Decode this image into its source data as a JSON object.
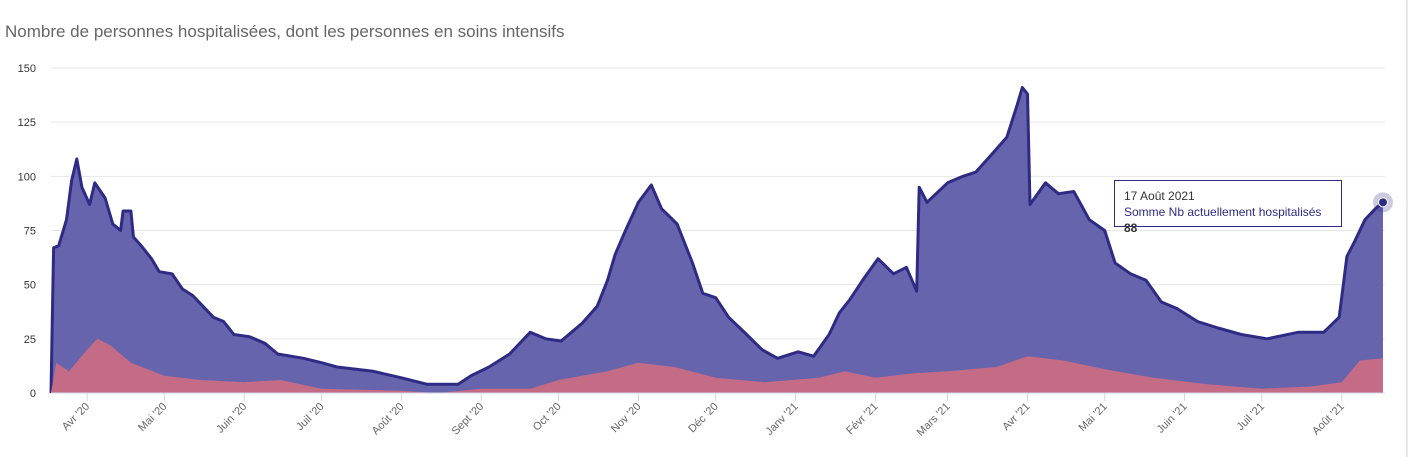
{
  "title": "Nombre de personnes hospitalisées, dont les personnes en soins intensifs",
  "tooltip": {
    "date": "17 Août 2021",
    "series_label": "Somme Nb actuellement hospitalisés",
    "value": "88"
  },
  "chart_data": {
    "type": "area",
    "title": "Nombre de personnes hospitalisées, dont les personnes en soins intensifs",
    "ylim": [
      0,
      150
    ],
    "yticks": [
      0,
      25,
      50,
      75,
      100,
      125,
      150
    ],
    "xlim": [
      "2020-03-18",
      "2021-08-17"
    ],
    "xticks": [
      {
        "date": "2020-04-01",
        "label": "Avr '20"
      },
      {
        "date": "2020-05-01",
        "label": "Mai '20"
      },
      {
        "date": "2020-06-01",
        "label": "Juin '20"
      },
      {
        "date": "2020-07-01",
        "label": "Juil '20"
      },
      {
        "date": "2020-08-01",
        "label": "Août '20"
      },
      {
        "date": "2020-09-01",
        "label": "Sept '20"
      },
      {
        "date": "2020-10-01",
        "label": "Oct '20"
      },
      {
        "date": "2020-11-01",
        "label": "Nov '20"
      },
      {
        "date": "2020-12-01",
        "label": "Déc '20"
      },
      {
        "date": "2021-01-01",
        "label": "Janv '21"
      },
      {
        "date": "2021-02-01",
        "label": "Févr '21"
      },
      {
        "date": "2021-03-01",
        "label": "Mars '21"
      },
      {
        "date": "2021-04-01",
        "label": "Avr '21"
      },
      {
        "date": "2021-05-01",
        "label": "Mai '21"
      },
      {
        "date": "2021-06-01",
        "label": "Juin '21"
      },
      {
        "date": "2021-07-01",
        "label": "Juil '21"
      },
      {
        "date": "2021-08-01",
        "label": "Août '21"
      }
    ],
    "grid": true,
    "colors": {
      "hospitalized_fill": "#6764ae",
      "hospitalized_line": "#2e2b84",
      "icu_fill": "#c46b86"
    },
    "series": [
      {
        "name": "Somme Nb actuellement hospitalisés",
        "points": [
          [
            "2020-03-18",
            0
          ],
          [
            "2020-03-19",
            67
          ],
          [
            "2020-03-21",
            68
          ],
          [
            "2020-03-24",
            80
          ],
          [
            "2020-03-26",
            98
          ],
          [
            "2020-03-28",
            108
          ],
          [
            "2020-03-30",
            95
          ],
          [
            "2020-04-02",
            87
          ],
          [
            "2020-04-04",
            97
          ],
          [
            "2020-04-08",
            90
          ],
          [
            "2020-04-11",
            78
          ],
          [
            "2020-04-14",
            75
          ],
          [
            "2020-04-15",
            84
          ],
          [
            "2020-04-18",
            84
          ],
          [
            "2020-04-19",
            72
          ],
          [
            "2020-04-22",
            68
          ],
          [
            "2020-04-26",
            62
          ],
          [
            "2020-04-29",
            56
          ],
          [
            "2020-05-04",
            55
          ],
          [
            "2020-05-08",
            48
          ],
          [
            "2020-05-12",
            45
          ],
          [
            "2020-05-16",
            40
          ],
          [
            "2020-05-20",
            35
          ],
          [
            "2020-05-24",
            33
          ],
          [
            "2020-05-28",
            27
          ],
          [
            "2020-06-03",
            26
          ],
          [
            "2020-06-09",
            23
          ],
          [
            "2020-06-14",
            18
          ],
          [
            "2020-06-24",
            16
          ],
          [
            "2020-07-01",
            14
          ],
          [
            "2020-07-07",
            12
          ],
          [
            "2020-07-21",
            10
          ],
          [
            "2020-08-01",
            7
          ],
          [
            "2020-08-11",
            4
          ],
          [
            "2020-08-23",
            4
          ],
          [
            "2020-08-28",
            8
          ],
          [
            "2020-09-04",
            12
          ],
          [
            "2020-09-12",
            18
          ],
          [
            "2020-09-20",
            28
          ],
          [
            "2020-09-26",
            25
          ],
          [
            "2020-10-02",
            24
          ],
          [
            "2020-10-10",
            32
          ],
          [
            "2020-10-16",
            40
          ],
          [
            "2020-10-20",
            52
          ],
          [
            "2020-10-23",
            64
          ],
          [
            "2020-10-27",
            75
          ],
          [
            "2020-11-01",
            88
          ],
          [
            "2020-11-06",
            96
          ],
          [
            "2020-11-10",
            85
          ],
          [
            "2020-11-16",
            78
          ],
          [
            "2020-11-22",
            60
          ],
          [
            "2020-11-26",
            46
          ],
          [
            "2020-12-01",
            44
          ],
          [
            "2020-12-06",
            35
          ],
          [
            "2020-12-13",
            27
          ],
          [
            "2020-12-19",
            20
          ],
          [
            "2020-12-25",
            16
          ],
          [
            "2021-01-02",
            19
          ],
          [
            "2021-01-08",
            17
          ],
          [
            "2021-01-14",
            27
          ],
          [
            "2021-01-18",
            37
          ],
          [
            "2021-01-22",
            43
          ],
          [
            "2021-01-27",
            52
          ],
          [
            "2021-02-02",
            62
          ],
          [
            "2021-02-08",
            55
          ],
          [
            "2021-02-13",
            58
          ],
          [
            "2021-02-17",
            47
          ],
          [
            "2021-02-18",
            95
          ],
          [
            "2021-02-21",
            88
          ],
          [
            "2021-03-01",
            97
          ],
          [
            "2021-03-07",
            100
          ],
          [
            "2021-03-12",
            102
          ],
          [
            "2021-03-18",
            110
          ],
          [
            "2021-03-24",
            118
          ],
          [
            "2021-03-28",
            133
          ],
          [
            "2021-03-30",
            141
          ],
          [
            "2021-04-01",
            138
          ],
          [
            "2021-04-02",
            87
          ],
          [
            "2021-04-08",
            97
          ],
          [
            "2021-04-13",
            92
          ],
          [
            "2021-04-19",
            93
          ],
          [
            "2021-04-25",
            80
          ],
          [
            "2021-05-01",
            75
          ],
          [
            "2021-05-05",
            60
          ],
          [
            "2021-05-11",
            55
          ],
          [
            "2021-05-17",
            52
          ],
          [
            "2021-05-23",
            42
          ],
          [
            "2021-05-29",
            39
          ],
          [
            "2021-06-06",
            33
          ],
          [
            "2021-06-14",
            30
          ],
          [
            "2021-06-23",
            27
          ],
          [
            "2021-07-03",
            25
          ],
          [
            "2021-07-15",
            28
          ],
          [
            "2021-07-25",
            28
          ],
          [
            "2021-07-31",
            35
          ],
          [
            "2021-08-03",
            63
          ],
          [
            "2021-08-06",
            70
          ],
          [
            "2021-08-10",
            80
          ],
          [
            "2021-08-14",
            85
          ],
          [
            "2021-08-17",
            88
          ]
        ]
      },
      {
        "name": "Soins intensifs",
        "points": [
          [
            "2020-03-18",
            0
          ],
          [
            "2020-03-20",
            14
          ],
          [
            "2020-03-25",
            10
          ],
          [
            "2020-04-01",
            20
          ],
          [
            "2020-04-05",
            25
          ],
          [
            "2020-04-10",
            22
          ],
          [
            "2020-04-18",
            14
          ],
          [
            "2020-05-01",
            8
          ],
          [
            "2020-05-15",
            6
          ],
          [
            "2020-06-01",
            5
          ],
          [
            "2020-06-15",
            6
          ],
          [
            "2020-07-01",
            2
          ],
          [
            "2020-08-01",
            1
          ],
          [
            "2020-08-15",
            0
          ],
          [
            "2020-09-01",
            2
          ],
          [
            "2020-09-20",
            2
          ],
          [
            "2020-10-01",
            6
          ],
          [
            "2020-10-20",
            10
          ],
          [
            "2020-11-01",
            14
          ],
          [
            "2020-11-15",
            12
          ],
          [
            "2020-12-01",
            7
          ],
          [
            "2020-12-20",
            5
          ],
          [
            "2021-01-10",
            7
          ],
          [
            "2021-01-20",
            10
          ],
          [
            "2021-02-01",
            7
          ],
          [
            "2021-02-15",
            9
          ],
          [
            "2021-03-01",
            10
          ],
          [
            "2021-03-20",
            12
          ],
          [
            "2021-04-01",
            17
          ],
          [
            "2021-04-15",
            15
          ],
          [
            "2021-05-01",
            11
          ],
          [
            "2021-05-20",
            7
          ],
          [
            "2021-06-10",
            4
          ],
          [
            "2021-07-01",
            2
          ],
          [
            "2021-07-20",
            3
          ],
          [
            "2021-08-01",
            5
          ],
          [
            "2021-08-08",
            15
          ],
          [
            "2021-08-17",
            16
          ]
        ]
      }
    ]
  }
}
